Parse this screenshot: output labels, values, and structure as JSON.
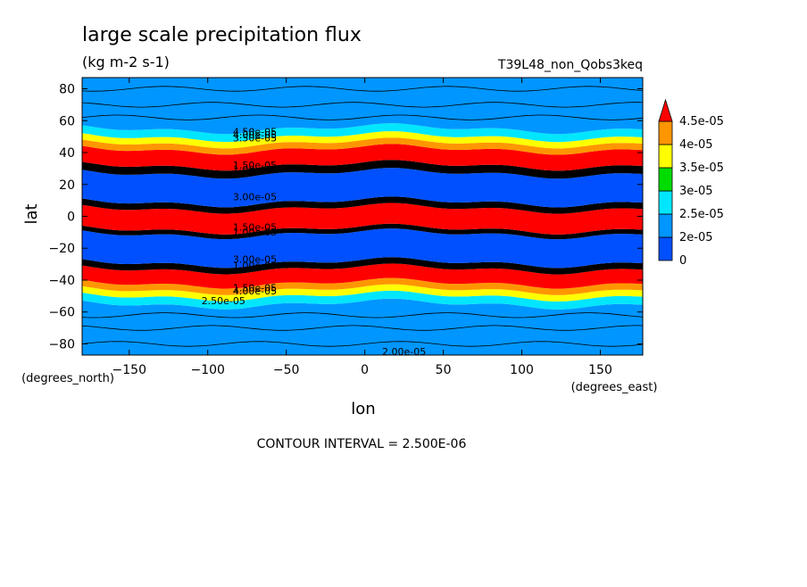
{
  "chart_data": {
    "type": "heatmap",
    "subtype": "filled-contour",
    "title": "large scale precipitation flux",
    "units": "(kg m-2 s-1)",
    "dataset_label": "T39L48_non_Qobs3keq",
    "xlabel": "lon",
    "ylabel": "lat",
    "x_units_label": "(degrees_east)",
    "y_units_label": "(degrees_north)",
    "xlim": [
      -180,
      177
    ],
    "ylim": [
      -87,
      87
    ],
    "x_ticks": [
      -150,
      -100,
      -50,
      0,
      50,
      100,
      150
    ],
    "y_ticks": [
      -80,
      -60,
      -40,
      -20,
      0,
      20,
      40,
      60,
      80
    ],
    "footer": "CONTOUR INTERVAL = 2.500E-06",
    "colorbar": {
      "labels": [
        "0",
        "2e-05",
        "2.5e-05",
        "3e-05",
        "3.5e-05",
        "4e-05",
        "4.5e-05"
      ],
      "colors": [
        "#0050ff",
        "#0096ff",
        "#00e6ff",
        "#00dc00",
        "#ffff00",
        "#ff9600",
        "#ff0000"
      ],
      "extend": "max"
    },
    "contour_labels": [
      {
        "text": "4.50e-05",
        "lon": -70,
        "lat": 51
      },
      {
        "text": "3.50e-05",
        "lon": -70,
        "lat": 47
      },
      {
        "text": "4.00e-05",
        "lon": -70,
        "lat": 49
      },
      {
        "text": "1.50e-05",
        "lon": -70,
        "lat": 30
      },
      {
        "text": "1.00e-05",
        "lon": -70,
        "lat": 27
      },
      {
        "text": "3.00e-05",
        "lon": -70,
        "lat": 10
      },
      {
        "text": "1.50e-05",
        "lon": -70,
        "lat": -9
      },
      {
        "text": "1.00e-05",
        "lon": -70,
        "lat": -12
      },
      {
        "text": "3.00e-05",
        "lon": -70,
        "lat": -29
      },
      {
        "text": "1.00e-05",
        "lon": -70,
        "lat": -33
      },
      {
        "text": "1.50e-05",
        "lon": -70,
        "lat": -47
      },
      {
        "text": "4.00e-05",
        "lon": -70,
        "lat": -49
      },
      {
        "text": "2.50e-05",
        "lon": -90,
        "lat": -55
      },
      {
        "text": "2.00e-05",
        "lon": 25,
        "lat": -87
      }
    ],
    "zonal_bands": [
      {
        "lat_from": -87,
        "lat_to": -55,
        "color": "#0096ff"
      },
      {
        "lat_from": -55,
        "lat_to": -50,
        "color": "#00e6ff"
      },
      {
        "lat_from": -50,
        "lat_to": -46,
        "color": "#ffff00"
      },
      {
        "lat_from": -46,
        "lat_to": -42,
        "color": "#ff9600"
      },
      {
        "lat_from": -42,
        "lat_to": -33,
        "color": "#ff0000"
      },
      {
        "lat_from": -33,
        "lat_to": -29,
        "color": "#000000"
      },
      {
        "lat_from": -29,
        "lat_to": -11,
        "color": "#0050ff"
      },
      {
        "lat_from": -11,
        "lat_to": -8,
        "color": "#000000"
      },
      {
        "lat_from": -8,
        "lat_to": 5,
        "color": "#ff0000"
      },
      {
        "lat_from": 5,
        "lat_to": 9,
        "color": "#000000"
      },
      {
        "lat_from": 9,
        "lat_to": 27,
        "color": "#0050ff"
      },
      {
        "lat_from": 27,
        "lat_to": 32,
        "color": "#000000"
      },
      {
        "lat_from": 32,
        "lat_to": 42,
        "color": "#ff0000"
      },
      {
        "lat_from": 42,
        "lat_to": 46,
        "color": "#ff9600"
      },
      {
        "lat_from": 46,
        "lat_to": 50,
        "color": "#ffff00"
      },
      {
        "lat_from": 50,
        "lat_to": 55,
        "color": "#00e6ff"
      },
      {
        "lat_from": 55,
        "lat_to": 87,
        "color": "#0096ff"
      }
    ]
  }
}
